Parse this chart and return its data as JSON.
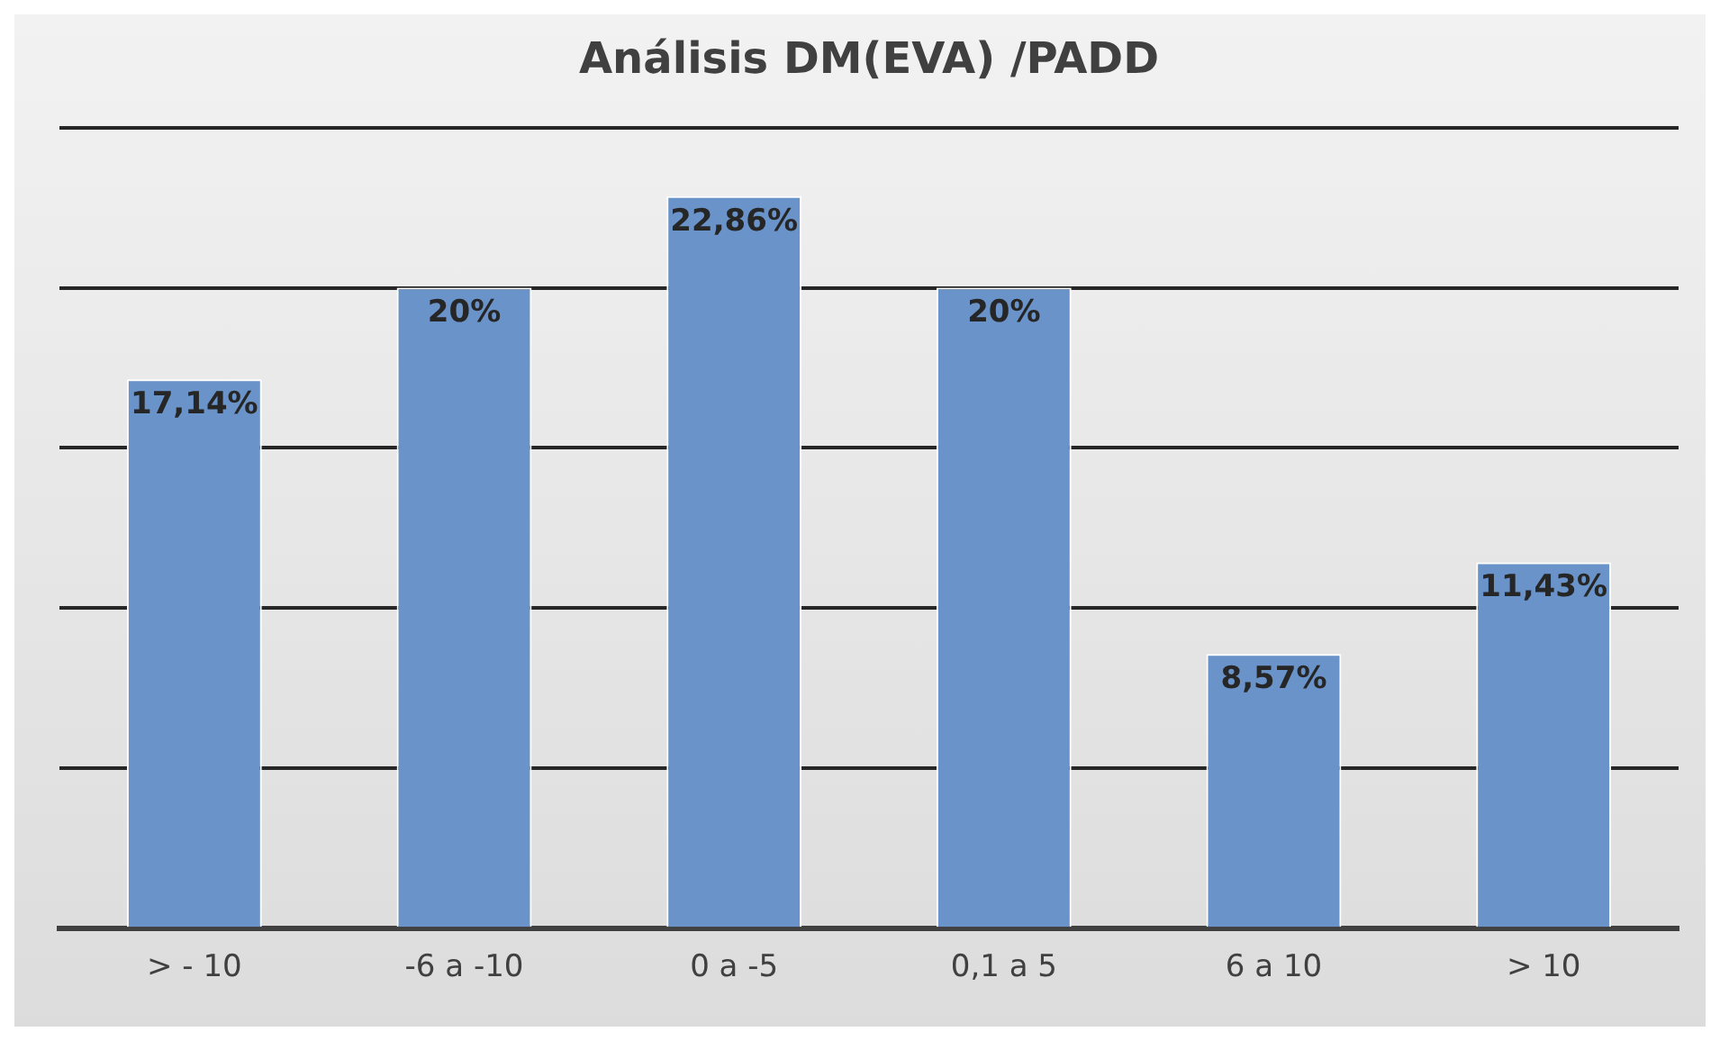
{
  "chart_data": {
    "type": "bar",
    "title": "Análisis DM(EVA) /PADD",
    "categories": [
      "> - 10",
      "-6 a -10",
      "0 a -5",
      "0,1 a 5",
      "6 a 10",
      "> 10"
    ],
    "values": [
      17.14,
      20,
      22.86,
      20,
      8.57,
      11.43
    ],
    "value_labels": [
      "17,14%",
      "20%",
      "22,86%",
      "20%",
      "8,57%",
      "11,43%"
    ],
    "color": "#6a93c9",
    "ylim": [
      0,
      25
    ],
    "yticks": [
      {
        "value": 0,
        "label": null
      },
      {
        "value": 5,
        "label": null
      },
      {
        "value": 10,
        "label": null
      },
      {
        "value": 15,
        "label": null
      },
      {
        "value": 20,
        "label": null
      },
      {
        "value": 25,
        "label": null
      }
    ],
    "grid": "y",
    "tick_labels": "x"
  }
}
